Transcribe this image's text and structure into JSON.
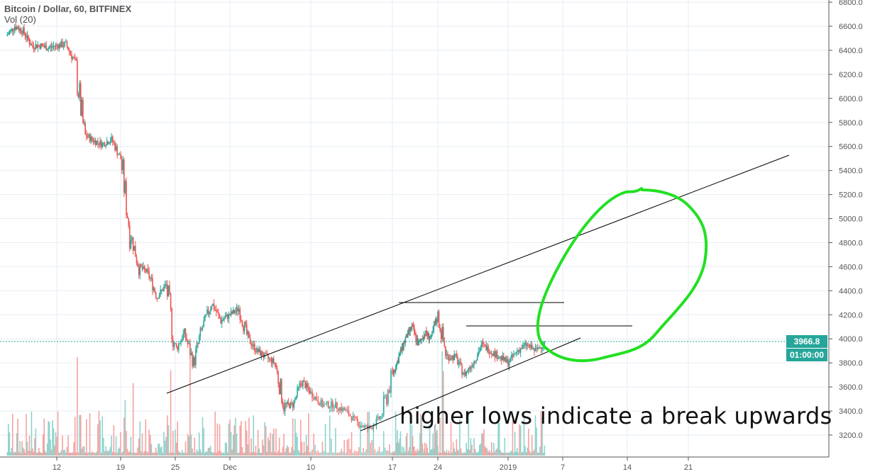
{
  "legend": {
    "title": "Bitcoin / Dollar, 60, BITFINEX",
    "indicator": "Vol (20)"
  },
  "annotation_text": "higher lows indicate a break upwards",
  "price_tag": {
    "last_price": "3966.8",
    "countdown": "01:00:00"
  },
  "colors": {
    "up": "#26a69a",
    "down": "#ef5350",
    "vol_up": "#8fd3cc",
    "vol_down": "#f5a3a1",
    "annotation_green": "#22e022",
    "trendlines": "#000000"
  },
  "chart_data": {
    "type": "candlestick",
    "symbol": "BTCUSD",
    "interval": "60",
    "exchange": "BITFINEX",
    "ylim": [
      3100,
      6800
    ],
    "y_ticks": [
      "3200.0",
      "3400.0",
      "3600.0",
      "3800.0",
      "4000.0",
      "4200.0",
      "4400.0",
      "4600.0",
      "4800.0",
      "5000.0",
      "5200.0",
      "5400.0",
      "5600.0",
      "5800.0",
      "6000.0",
      "6200.0",
      "6400.0",
      "6600.0",
      "6800.0"
    ],
    "x_ticks": [
      "12",
      "19",
      "25",
      "Dec",
      "10",
      "17",
      "24",
      "2019",
      "7",
      "14",
      "21"
    ],
    "grid": true,
    "approx_daily_close": [
      [
        "2018-11-06",
        6520
      ],
      [
        "2018-11-07",
        6600
      ],
      [
        "2018-11-08",
        6560
      ],
      [
        "2018-11-09",
        6440
      ],
      [
        "2018-11-10",
        6440
      ],
      [
        "2018-11-11",
        6420
      ],
      [
        "2018-11-12",
        6440
      ],
      [
        "2018-11-13",
        6450
      ],
      [
        "2018-11-14",
        6300
      ],
      [
        "2018-11-15",
        5700
      ],
      [
        "2018-11-16",
        5650
      ],
      [
        "2018-11-17",
        5620
      ],
      [
        "2018-11-18",
        5660
      ],
      [
        "2018-11-19",
        5500
      ],
      [
        "2018-11-20",
        4900
      ],
      [
        "2018-11-21",
        4600
      ],
      [
        "2018-11-22",
        4550
      ],
      [
        "2018-11-23",
        4350
      ],
      [
        "2018-11-24",
        4450
      ],
      [
        "2018-11-25",
        3900
      ],
      [
        "2018-11-26",
        4050
      ],
      [
        "2018-11-27",
        3800
      ],
      [
        "2018-11-28",
        4100
      ],
      [
        "2018-11-29",
        4300
      ],
      [
        "2018-11-30",
        4150
      ],
      [
        "2018-12-01",
        4200
      ],
      [
        "2018-12-02",
        4250
      ],
      [
        "2018-12-03",
        4000
      ],
      [
        "2018-12-04",
        3900
      ],
      [
        "2018-12-05",
        3850
      ],
      [
        "2018-12-06",
        3800
      ],
      [
        "2018-12-07",
        3450
      ],
      [
        "2018-12-08",
        3450
      ],
      [
        "2018-12-09",
        3650
      ],
      [
        "2018-12-10",
        3550
      ],
      [
        "2018-12-11",
        3450
      ],
      [
        "2018-12-12",
        3450
      ],
      [
        "2018-12-13",
        3400
      ],
      [
        "2018-12-14",
        3300
      ],
      [
        "2018-12-15",
        3250
      ],
      [
        "2018-12-16",
        3350
      ],
      [
        "2018-12-17",
        3700
      ],
      [
        "2018-12-18",
        3850
      ],
      [
        "2018-12-19",
        4000
      ],
      [
        "2018-12-20",
        4100
      ],
      [
        "2018-12-21",
        3950
      ],
      [
        "2018-12-22",
        4050
      ],
      [
        "2018-12-23",
        4000
      ],
      [
        "2018-12-24",
        4200
      ],
      [
        "2018-12-25",
        3850
      ],
      [
        "2018-12-26",
        3850
      ],
      [
        "2018-12-27",
        3700
      ],
      [
        "2018-12-28",
        3800
      ],
      [
        "2018-12-29",
        3950
      ],
      [
        "2018-12-30",
        3900
      ],
      [
        "2018-12-31",
        3850
      ],
      [
        "2019-01-01",
        3800
      ],
      [
        "2019-01-02",
        3900
      ],
      [
        "2019-01-03",
        3950
      ],
      [
        "2019-01-04",
        3900
      ],
      [
        "2019-01-05",
        3966.8
      ]
    ],
    "last_price": 3966.8
  }
}
